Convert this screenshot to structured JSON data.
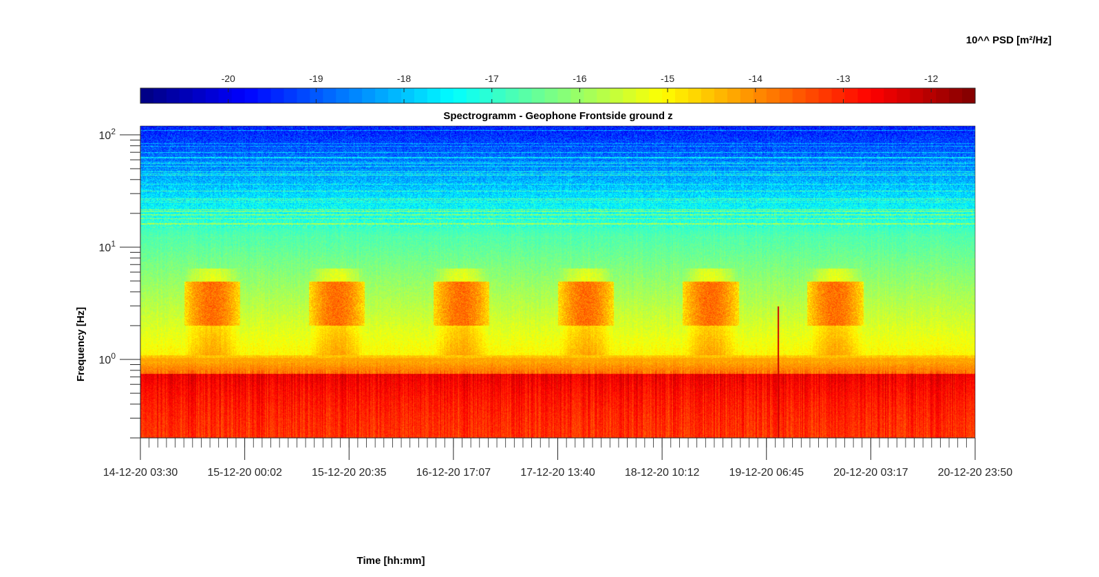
{
  "chart_data": {
    "type": "heatmap",
    "title": "Spectrogramm - Geophone Frontside ground z",
    "xlabel": "Time [hh:mm]",
    "ylabel": "Frequency [Hz]",
    "x_tick_labels": [
      "14-12-20 03:30",
      "15-12-20 00:02",
      "15-12-20 20:35",
      "16-12-20 17:07",
      "17-12-20 13:40",
      "18-12-20 10:12",
      "19-12-20 06:45",
      "20-12-20 03:17",
      "20-12-20 23:50"
    ],
    "y_scale": "log",
    "ylim": [
      0.2,
      120
    ],
    "y_tick_labels": [
      {
        "base": "10",
        "exp": "0",
        "value": 1
      },
      {
        "base": "10",
        "exp": "1",
        "value": 10
      },
      {
        "base": "10",
        "exp": "2",
        "value": 100
      }
    ],
    "colorbar": {
      "label": "10^^ PSD [m²/Hz]",
      "range": [
        -21,
        -11.5
      ],
      "ticks": [
        "-20",
        "-19",
        "-18",
        "-17",
        "-16",
        "-15",
        "-14",
        "-13",
        "-12"
      ],
      "colormap": "jet",
      "placement": "top"
    },
    "diurnal_activity_bands": {
      "freq_range_hz": [
        2,
        5
      ],
      "peak_log_psd": -13.5,
      "count": 6
    },
    "persistent_line_hz": 1.0,
    "low_freq_level_log_psd": -12.5,
    "high_freq_level_log_psd": -19.5
  }
}
